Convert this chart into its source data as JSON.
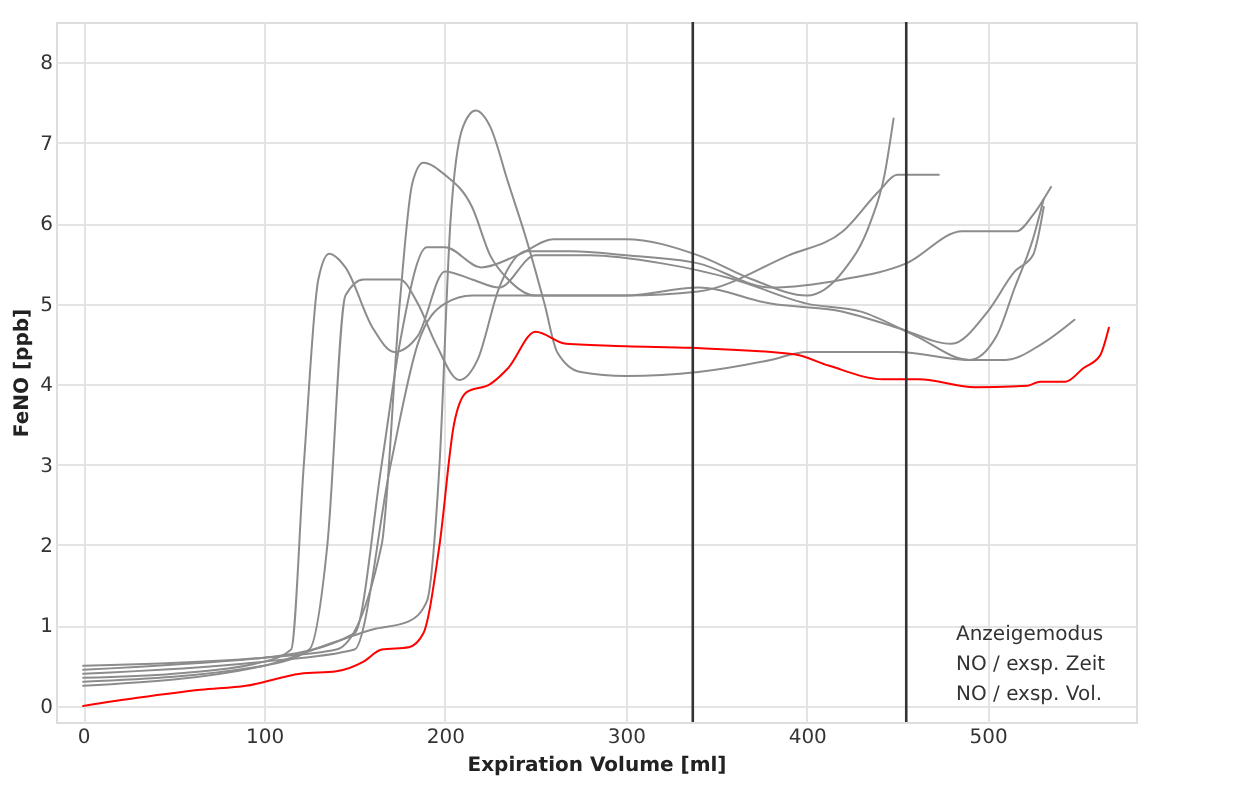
{
  "chart_data": {
    "type": "line",
    "xlabel": "Expiration Volume [ml]",
    "ylabel": "FeNO [ppb]",
    "xlim": [
      -15,
      582
    ],
    "ylim": [
      -0.2,
      8.5
    ],
    "xticks": [
      0,
      100,
      200,
      300,
      400,
      500
    ],
    "yticks": [
      0,
      1,
      2,
      3,
      4,
      5,
      6,
      7,
      8
    ],
    "grid": true,
    "legend": false,
    "marker": "none",
    "line_style": "solid",
    "series": [
      {
        "color": "#8c8c8c",
        "x": [
          0,
          50,
          100,
          115,
          122,
          130,
          136,
          145,
          160,
          172,
          185,
          200,
          215,
          230,
          250,
          280,
          320,
          360,
          400,
          430,
          460,
          490,
          510,
          530,
          548
        ],
        "values": [
          0.35,
          0.4,
          0.55,
          0.7,
          3,
          5.3,
          5.62,
          5.45,
          4.7,
          4.4,
          4.6,
          5.4,
          5.3,
          5.2,
          5.6,
          5.6,
          5.5,
          5.3,
          5.0,
          4.9,
          4.6,
          4.3,
          4.3,
          4.5,
          4.8
        ]
      },
      {
        "color": "#8c8c8c",
        "x": [
          0,
          100,
          125,
          135,
          145,
          155,
          175,
          185,
          195,
          208,
          218,
          230,
          245,
          270,
          300,
          340,
          380,
          420,
          455,
          486,
          516,
          525,
          535
        ],
        "values": [
          0.3,
          0.5,
          0.7,
          2,
          5.1,
          5.3,
          5.3,
          5.0,
          4.5,
          4.05,
          4.3,
          5.2,
          5.65,
          5.65,
          5.6,
          5.5,
          5.2,
          5.3,
          5.5,
          5.9,
          5.9,
          6.1,
          6.45
        ]
      },
      {
        "color": "#8c8c8c",
        "x": [
          0,
          100,
          140,
          160,
          180,
          190,
          197,
          203,
          210,
          217,
          225,
          235,
          245,
          255,
          262,
          275,
          300,
          340,
          380,
          400,
          450,
          490,
          505,
          515,
          525,
          531
        ],
        "values": [
          0.25,
          0.5,
          0.8,
          0.95,
          1.05,
          1.3,
          3,
          6,
          7.2,
          7.4,
          7.2,
          6.5,
          5.8,
          5.0,
          4.4,
          4.15,
          4.1,
          4.15,
          4.3,
          4.4,
          4.4,
          4.3,
          4.6,
          5.2,
          5.8,
          6.3
        ]
      },
      {
        "color": "#8c8c8c",
        "x": [
          0,
          100,
          140,
          165,
          175,
          182,
          188,
          200,
          215,
          225,
          235,
          250,
          300,
          340,
          390,
          420,
          440,
          450,
          473
        ],
        "values": [
          0.45,
          0.6,
          0.7,
          2,
          5,
          6.5,
          6.75,
          6.6,
          6.2,
          5.6,
          5.3,
          5.1,
          5.1,
          5.15,
          5.6,
          5.9,
          6.4,
          6.6,
          6.6
        ]
      },
      {
        "color": "#8c8c8c",
        "x": [
          0,
          100,
          150,
          165,
          175,
          190,
          200,
          220,
          240,
          260,
          300,
          340,
          370,
          400,
          420,
          435,
          443,
          448
        ],
        "values": [
          0.5,
          0.6,
          0.9,
          3,
          4.5,
          5.7,
          5.7,
          5.45,
          5.6,
          5.8,
          5.8,
          5.6,
          5.3,
          5.1,
          5.4,
          6.0,
          6.6,
          7.3
        ]
      },
      {
        "color": "#8c8c8c",
        "x": [
          0,
          100,
          150,
          170,
          185,
          200,
          215,
          260,
          300,
          340,
          380,
          420,
          450,
          480,
          500,
          515,
          525,
          531
        ],
        "values": [
          0.4,
          0.55,
          0.7,
          3,
          4.5,
          5.0,
          5.1,
          5.1,
          5.1,
          5.2,
          5.0,
          4.9,
          4.7,
          4.5,
          4.9,
          5.4,
          5.6,
          6.2
        ]
      },
      {
        "color": "#ff0000",
        "x": [
          0,
          30,
          65,
          90,
          120,
          140,
          155,
          165,
          180,
          188,
          197,
          205,
          212,
          225,
          235,
          250,
          267,
          300,
          336,
          393,
          412,
          442,
          462,
          493,
          522,
          529,
          543,
          553,
          562,
          567
        ],
        "values": [
          0,
          0.1,
          0.2,
          0.25,
          0.4,
          0.43,
          0.55,
          0.7,
          0.73,
          0.9,
          2,
          3.5,
          3.9,
          4.0,
          4.2,
          4.65,
          4.5,
          4.47,
          4.45,
          4.37,
          4.23,
          4.06,
          4.06,
          3.96,
          3.98,
          4.03,
          4.03,
          4.2,
          4.35,
          4.7
        ]
      }
    ],
    "ref_lines": [
      {
        "axis": "x",
        "value": 337,
        "color": "#333333"
      },
      {
        "axis": "x",
        "value": 455,
        "color": "#333333"
      }
    ],
    "annotations": [
      "Anzeigemodus",
      "NO / exsp. Zeit",
      "NO / exsp. Vol."
    ]
  }
}
